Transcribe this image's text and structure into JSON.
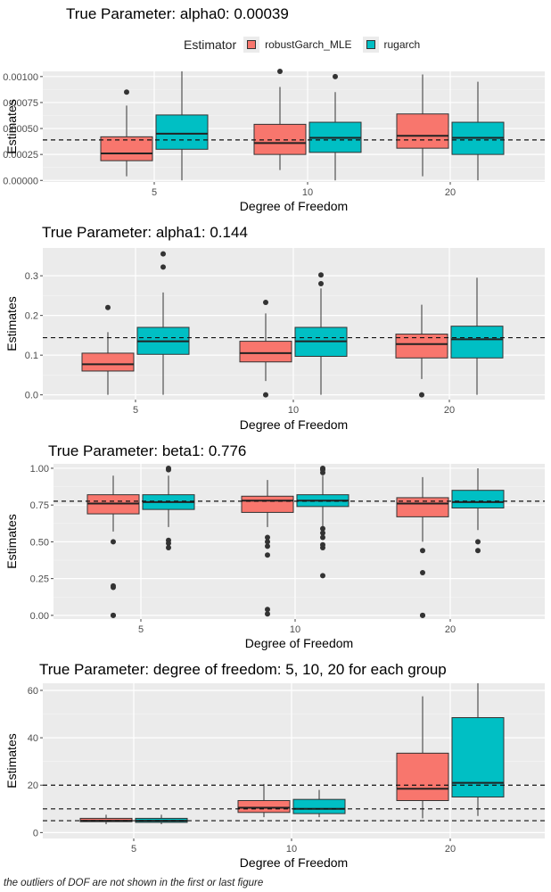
{
  "legend": {
    "title": "Estimator",
    "items": [
      {
        "label": "robustGarch_MLE",
        "color": "#f8766d"
      },
      {
        "label": "rugarch",
        "color": "#00bfc4"
      }
    ]
  },
  "footnote": "the outliers of DOF are not shown in the first or last figure",
  "chart_data": [
    {
      "type": "box",
      "title": "True Parameter: alpha0: 0.00039",
      "xlabel": "Degree of Freedom",
      "ylabel": "Estimates",
      "categories": [
        "5",
        "10",
        "20"
      ],
      "ylim": [
        -1.5e-05,
        0.00105
      ],
      "yticks": [
        0,
        0.00025,
        0.0005,
        0.00075,
        0.001
      ],
      "ytick_labels": [
        "0.00000",
        "0.00025",
        "0.00050",
        "0.00075",
        "0.00100"
      ],
      "reference_lines": [
        0.00039
      ],
      "series": [
        {
          "name": "robustGarch_MLE",
          "boxes": [
            {
              "min": 4e-05,
              "q1": 0.00019,
              "median": 0.00026,
              "q3": 0.00042,
              "max": 0.00072,
              "outliers": [
                0.00085
              ]
            },
            {
              "min": 0.0001,
              "q1": 0.00025,
              "median": 0.00036,
              "q3": 0.00054,
              "max": 0.0009,
              "outliers": [
                0.00105
              ]
            },
            {
              "min": 4e-05,
              "q1": 0.00031,
              "median": 0.00043,
              "q3": 0.00064,
              "max": 0.00102,
              "outliers": []
            }
          ]
        },
        {
          "name": "rugarch",
          "boxes": [
            {
              "min": 0.0,
              "q1": 0.0003,
              "median": 0.00045,
              "q3": 0.00063,
              "max": 0.00105,
              "outliers": []
            },
            {
              "min": 0.0,
              "q1": 0.00027,
              "median": 0.00041,
              "q3": 0.00056,
              "max": 0.00085,
              "outliers": [
                0.001
              ]
            },
            {
              "min": 0.0,
              "q1": 0.00025,
              "median": 0.00041,
              "q3": 0.00056,
              "max": 0.00095,
              "outliers": []
            }
          ]
        }
      ]
    },
    {
      "type": "box",
      "title": "True Parameter: alpha1: 0.144",
      "xlabel": "Degree of Freedom",
      "ylabel": "Estimates",
      "categories": [
        "5",
        "10",
        "20"
      ],
      "ylim": [
        -0.012,
        0.37
      ],
      "yticks": [
        0,
        0.1,
        0.2,
        0.3
      ],
      "ytick_labels": [
        "0.0",
        "0.1",
        "0.2",
        "0.3"
      ],
      "reference_lines": [
        0.144
      ],
      "series": [
        {
          "name": "robustGarch_MLE",
          "boxes": [
            {
              "min": 0.0,
              "q1": 0.06,
              "median": 0.077,
              "q3": 0.105,
              "max": 0.158,
              "outliers": [
                0.22
              ]
            },
            {
              "min": 0.035,
              "q1": 0.083,
              "median": 0.105,
              "q3": 0.135,
              "max": 0.205,
              "outliers": [
                0.233,
                0.0
              ]
            },
            {
              "min": 0.04,
              "q1": 0.093,
              "median": 0.128,
              "q3": 0.153,
              "max": 0.227,
              "outliers": [
                0.0
              ]
            }
          ]
        },
        {
          "name": "rugarch",
          "boxes": [
            {
              "min": 0.0,
              "q1": 0.102,
              "median": 0.135,
              "q3": 0.17,
              "max": 0.258,
              "outliers": [
                0.355,
                0.322
              ]
            },
            {
              "min": 0.0,
              "q1": 0.097,
              "median": 0.135,
              "q3": 0.17,
              "max": 0.268,
              "outliers": [
                0.302,
                0.28
              ]
            },
            {
              "min": 0.0,
              "q1": 0.093,
              "median": 0.14,
              "q3": 0.173,
              "max": 0.295,
              "outliers": []
            }
          ]
        }
      ]
    },
    {
      "type": "box",
      "title": "True Parameter: beta1: 0.776",
      "xlabel": "Degree of Freedom",
      "ylabel": "Estimates",
      "categories": [
        "5",
        "10",
        "20"
      ],
      "ylim": [
        -0.025,
        1.03
      ],
      "yticks": [
        0,
        0.25,
        0.5,
        0.75,
        1.0
      ],
      "ytick_labels": [
        "0.00",
        "0.25",
        "0.50",
        "0.75",
        "1.00"
      ],
      "reference_lines": [
        0.776
      ],
      "series": [
        {
          "name": "robustGarch_MLE",
          "boxes": [
            {
              "min": 0.57,
              "q1": 0.69,
              "median": 0.76,
              "q3": 0.82,
              "max": 0.95,
              "outliers": [
                0.5,
                0.2,
                0.19,
                0.0,
                0.0
              ]
            },
            {
              "min": 0.6,
              "q1": 0.7,
              "median": 0.78,
              "q3": 0.81,
              "max": 0.92,
              "outliers": [
                0.53,
                0.5,
                0.47,
                0.41,
                0.04,
                0.01
              ]
            },
            {
              "min": 0.5,
              "q1": 0.67,
              "median": 0.76,
              "q3": 0.8,
              "max": 0.94,
              "outliers": [
                0.44,
                0.29,
                0.0,
                0.0
              ]
            }
          ]
        },
        {
          "name": "rugarch",
          "boxes": [
            {
              "min": 0.6,
              "q1": 0.72,
              "median": 0.77,
              "q3": 0.82,
              "max": 0.95,
              "outliers": [
                1.0,
                0.99,
                0.51,
                0.49,
                0.46
              ]
            },
            {
              "min": 0.6,
              "q1": 0.74,
              "median": 0.78,
              "q3": 0.82,
              "max": 0.95,
              "outliers": [
                1.0,
                0.99,
                0.97,
                0.59,
                0.56,
                0.53,
                0.48,
                0.46,
                0.27
              ]
            },
            {
              "min": 0.58,
              "q1": 0.73,
              "median": 0.77,
              "q3": 0.85,
              "max": 1.0,
              "outliers": [
                0.5,
                0.44
              ]
            }
          ]
        }
      ]
    },
    {
      "type": "box",
      "title": "True Parameter: degree of freedom: 5, 10, 20 for each group",
      "xlabel": "Degree of Freedom",
      "ylabel": "Estimates",
      "categories": [
        "5",
        "10",
        "20"
      ],
      "ylim": [
        -2.5,
        63
      ],
      "yticks": [
        0,
        20,
        40,
        60
      ],
      "ytick_labels": [
        "0",
        "20",
        "40",
        "60"
      ],
      "reference_lines": [
        5,
        10,
        20
      ],
      "series": [
        {
          "name": "robustGarch_MLE",
          "boxes": [
            {
              "min": 3.5,
              "q1": 4.6,
              "median": 5.0,
              "q3": 6.0,
              "max": 7.5,
              "outliers": []
            },
            {
              "min": 6.5,
              "q1": 8.5,
              "median": 10.5,
              "q3": 13.5,
              "max": 20.5,
              "outliers": []
            },
            {
              "min": 6.0,
              "q1": 13.5,
              "median": 18.5,
              "q3": 33.5,
              "max": 57.5,
              "outliers": []
            }
          ]
        },
        {
          "name": "rugarch",
          "boxes": [
            {
              "min": 3.5,
              "q1": 4.3,
              "median": 5.0,
              "q3": 6.0,
              "max": 7.5,
              "outliers": []
            },
            {
              "min": 6.5,
              "q1": 8.0,
              "median": 10.0,
              "q3": 14.0,
              "max": 18.0,
              "outliers": []
            },
            {
              "min": 7.0,
              "q1": 15.0,
              "median": 21.0,
              "q3": 48.5,
              "max": 63.0,
              "outliers": []
            }
          ]
        }
      ]
    }
  ]
}
